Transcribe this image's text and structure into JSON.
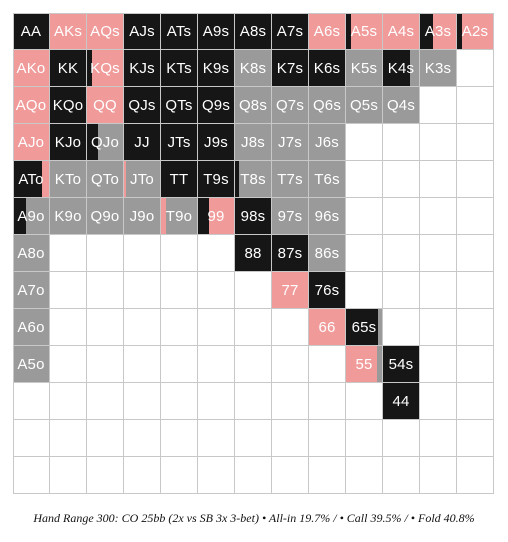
{
  "colors": {
    "allin": "#161616",
    "call": "#f09a9a",
    "fold": "#9a9a9a",
    "empty": "#ffffff",
    "label": "#ffffff"
  },
  "caption": "Hand Range 300: CO 25bb (2x vs SB 3x 3-bet) • All-in 19.7% / • Call 39.5% / • Fold 40.8%",
  "range_rows": [
    [
      {
        "hand": "AA",
        "allin": 1,
        "call": 0,
        "fold": 0
      },
      {
        "hand": "AKs",
        "allin": 0,
        "call": 1,
        "fold": 0
      },
      {
        "hand": "AQs",
        "allin": 0,
        "call": 1,
        "fold": 0
      },
      {
        "hand": "AJs",
        "allin": 1,
        "call": 0,
        "fold": 0
      },
      {
        "hand": "ATs",
        "allin": 1,
        "call": 0,
        "fold": 0
      },
      {
        "hand": "A9s",
        "allin": 1,
        "call": 0,
        "fold": 0
      },
      {
        "hand": "A8s",
        "allin": 1,
        "call": 0,
        "fold": 0
      },
      {
        "hand": "A7s",
        "allin": 1,
        "call": 0,
        "fold": 0
      },
      {
        "hand": "A6s",
        "allin": 0,
        "call": 1,
        "fold": 0
      },
      {
        "hand": "A5s",
        "allin": 0.15,
        "call": 0.85,
        "fold": 0
      },
      {
        "hand": "A4s",
        "allin": 0,
        "call": 1,
        "fold": 0
      },
      {
        "hand": "A3s",
        "allin": 0.35,
        "call": 0.65,
        "fold": 0
      },
      {
        "hand": "A2s",
        "allin": 0.15,
        "call": 0.85,
        "fold": 0
      }
    ],
    [
      {
        "hand": "AKo",
        "allin": 0,
        "call": 1,
        "fold": 0
      },
      {
        "hand": "KK",
        "allin": 1,
        "call": 0,
        "fold": 0
      },
      {
        "hand": "KQs",
        "allin": 0.15,
        "call": 0.85,
        "fold": 0
      },
      {
        "hand": "KJs",
        "allin": 1,
        "call": 0,
        "fold": 0
      },
      {
        "hand": "KTs",
        "allin": 1,
        "call": 0,
        "fold": 0
      },
      {
        "hand": "K9s",
        "allin": 1,
        "call": 0,
        "fold": 0
      },
      {
        "hand": "K8s",
        "allin": 0,
        "call": 0,
        "fold": 1
      },
      {
        "hand": "K7s",
        "allin": 1,
        "call": 0,
        "fold": 0
      },
      {
        "hand": "K6s",
        "allin": 1,
        "call": 0,
        "fold": 0
      },
      {
        "hand": "K5s",
        "allin": 0,
        "call": 0,
        "fold": 1
      },
      {
        "hand": "K4s",
        "allin": 0.75,
        "call": 0,
        "fold": 0.25
      },
      {
        "hand": "K3s",
        "allin": 0,
        "call": 0,
        "fold": 1
      },
      {
        "hand": "",
        "allin": 0,
        "call": 0,
        "fold": 0
      }
    ],
    [
      {
        "hand": "AQo",
        "allin": 0,
        "call": 1,
        "fold": 0
      },
      {
        "hand": "KQo",
        "allin": 1,
        "call": 0,
        "fold": 0
      },
      {
        "hand": "QQ",
        "allin": 0,
        "call": 1,
        "fold": 0
      },
      {
        "hand": "QJs",
        "allin": 1,
        "call": 0,
        "fold": 0
      },
      {
        "hand": "QTs",
        "allin": 1,
        "call": 0,
        "fold": 0
      },
      {
        "hand": "Q9s",
        "allin": 1,
        "call": 0,
        "fold": 0
      },
      {
        "hand": "Q8s",
        "allin": 0,
        "call": 0,
        "fold": 1
      },
      {
        "hand": "Q7s",
        "allin": 0,
        "call": 0,
        "fold": 1
      },
      {
        "hand": "Q6s",
        "allin": 0,
        "call": 0,
        "fold": 1
      },
      {
        "hand": "Q5s",
        "allin": 0,
        "call": 0,
        "fold": 1
      },
      {
        "hand": "Q4s",
        "allin": 0,
        "call": 0,
        "fold": 1
      },
      {
        "hand": "",
        "allin": 0,
        "call": 0,
        "fold": 0
      },
      {
        "hand": "",
        "allin": 0,
        "call": 0,
        "fold": 0
      }
    ],
    [
      {
        "hand": "AJo",
        "allin": 0,
        "call": 1,
        "fold": 0
      },
      {
        "hand": "KJo",
        "allin": 1,
        "call": 0,
        "fold": 0
      },
      {
        "hand": "QJo",
        "allin": 0.3,
        "call": 0,
        "fold": 0.7
      },
      {
        "hand": "JJ",
        "allin": 1,
        "call": 0,
        "fold": 0
      },
      {
        "hand": "JTs",
        "allin": 1,
        "call": 0,
        "fold": 0
      },
      {
        "hand": "J9s",
        "allin": 1,
        "call": 0,
        "fold": 0
      },
      {
        "hand": "J8s",
        "allin": 0,
        "call": 0,
        "fold": 1
      },
      {
        "hand": "J7s",
        "allin": 0,
        "call": 0,
        "fold": 1
      },
      {
        "hand": "J6s",
        "allin": 0,
        "call": 0,
        "fold": 1
      },
      {
        "hand": "",
        "allin": 0,
        "call": 0,
        "fold": 0
      },
      {
        "hand": "",
        "allin": 0,
        "call": 0,
        "fold": 0
      },
      {
        "hand": "",
        "allin": 0,
        "call": 0,
        "fold": 0
      },
      {
        "hand": "",
        "allin": 0,
        "call": 0,
        "fold": 0
      }
    ],
    [
      {
        "hand": "ATo",
        "allin": 0.8,
        "call": 0.2,
        "fold": 0
      },
      {
        "hand": "KTo",
        "allin": 0,
        "call": 0,
        "fold": 1
      },
      {
        "hand": "QTo",
        "allin": 0,
        "call": 0,
        "fold": 1
      },
      {
        "hand": "JTo",
        "allin": 0,
        "call": 0.05,
        "fold": 0.95
      },
      {
        "hand": "TT",
        "allin": 1,
        "call": 0,
        "fold": 0
      },
      {
        "hand": "T9s",
        "allin": 1,
        "call": 0,
        "fold": 0
      },
      {
        "hand": "T8s",
        "allin": 0.1,
        "call": 0,
        "fold": 0.9
      },
      {
        "hand": "T7s",
        "allin": 0,
        "call": 0,
        "fold": 1
      },
      {
        "hand": "T6s",
        "allin": 0,
        "call": 0,
        "fold": 1
      },
      {
        "hand": "",
        "allin": 0,
        "call": 0,
        "fold": 0
      },
      {
        "hand": "",
        "allin": 0,
        "call": 0,
        "fold": 0
      },
      {
        "hand": "",
        "allin": 0,
        "call": 0,
        "fold": 0
      },
      {
        "hand": "",
        "allin": 0,
        "call": 0,
        "fold": 0
      }
    ],
    [
      {
        "hand": "A9o",
        "allin": 0.35,
        "call": 0,
        "fold": 0.65
      },
      {
        "hand": "K9o",
        "allin": 0,
        "call": 0,
        "fold": 1
      },
      {
        "hand": "Q9o",
        "allin": 0,
        "call": 0,
        "fold": 1
      },
      {
        "hand": "J9o",
        "allin": 0,
        "call": 0,
        "fold": 1
      },
      {
        "hand": "T9o",
        "allin": 0,
        "call": 0.15,
        "fold": 0.85
      },
      {
        "hand": "99",
        "allin": 0.3,
        "call": 0.7,
        "fold": 0
      },
      {
        "hand": "98s",
        "allin": 1,
        "call": 0,
        "fold": 0
      },
      {
        "hand": "97s",
        "allin": 0,
        "call": 0,
        "fold": 1
      },
      {
        "hand": "96s",
        "allin": 0,
        "call": 0,
        "fold": 1
      },
      {
        "hand": "",
        "allin": 0,
        "call": 0,
        "fold": 0
      },
      {
        "hand": "",
        "allin": 0,
        "call": 0,
        "fold": 0
      },
      {
        "hand": "",
        "allin": 0,
        "call": 0,
        "fold": 0
      },
      {
        "hand": "",
        "allin": 0,
        "call": 0,
        "fold": 0
      }
    ],
    [
      {
        "hand": "A8o",
        "allin": 0,
        "call": 0,
        "fold": 1
      },
      {
        "hand": "",
        "allin": 0,
        "call": 0,
        "fold": 0
      },
      {
        "hand": "",
        "allin": 0,
        "call": 0,
        "fold": 0
      },
      {
        "hand": "",
        "allin": 0,
        "call": 0,
        "fold": 0
      },
      {
        "hand": "",
        "allin": 0,
        "call": 0,
        "fold": 0
      },
      {
        "hand": "",
        "allin": 0,
        "call": 0,
        "fold": 0
      },
      {
        "hand": "88",
        "allin": 1,
        "call": 0,
        "fold": 0
      },
      {
        "hand": "87s",
        "allin": 1,
        "call": 0,
        "fold": 0
      },
      {
        "hand": "86s",
        "allin": 0,
        "call": 0,
        "fold": 1
      },
      {
        "hand": "",
        "allin": 0,
        "call": 0,
        "fold": 0
      },
      {
        "hand": "",
        "allin": 0,
        "call": 0,
        "fold": 0
      },
      {
        "hand": "",
        "allin": 0,
        "call": 0,
        "fold": 0
      },
      {
        "hand": "",
        "allin": 0,
        "call": 0,
        "fold": 0
      }
    ],
    [
      {
        "hand": "A7o",
        "allin": 0,
        "call": 0,
        "fold": 1
      },
      {
        "hand": "",
        "allin": 0,
        "call": 0,
        "fold": 0
      },
      {
        "hand": "",
        "allin": 0,
        "call": 0,
        "fold": 0
      },
      {
        "hand": "",
        "allin": 0,
        "call": 0,
        "fold": 0
      },
      {
        "hand": "",
        "allin": 0,
        "call": 0,
        "fold": 0
      },
      {
        "hand": "",
        "allin": 0,
        "call": 0,
        "fold": 0
      },
      {
        "hand": "",
        "allin": 0,
        "call": 0,
        "fold": 0
      },
      {
        "hand": "77",
        "allin": 0,
        "call": 1,
        "fold": 0
      },
      {
        "hand": "76s",
        "allin": 1,
        "call": 0,
        "fold": 0
      },
      {
        "hand": "",
        "allin": 0,
        "call": 0,
        "fold": 0
      },
      {
        "hand": "",
        "allin": 0,
        "call": 0,
        "fold": 0
      },
      {
        "hand": "",
        "allin": 0,
        "call": 0,
        "fold": 0
      },
      {
        "hand": "",
        "allin": 0,
        "call": 0,
        "fold": 0
      }
    ],
    [
      {
        "hand": "A6o",
        "allin": 0,
        "call": 0,
        "fold": 1
      },
      {
        "hand": "",
        "allin": 0,
        "call": 0,
        "fold": 0
      },
      {
        "hand": "",
        "allin": 0,
        "call": 0,
        "fold": 0
      },
      {
        "hand": "",
        "allin": 0,
        "call": 0,
        "fold": 0
      },
      {
        "hand": "",
        "allin": 0,
        "call": 0,
        "fold": 0
      },
      {
        "hand": "",
        "allin": 0,
        "call": 0,
        "fold": 0
      },
      {
        "hand": "",
        "allin": 0,
        "call": 0,
        "fold": 0
      },
      {
        "hand": "",
        "allin": 0,
        "call": 0,
        "fold": 0
      },
      {
        "hand": "66",
        "allin": 0,
        "call": 1,
        "fold": 0
      },
      {
        "hand": "65s",
        "allin": 0.9,
        "call": 0,
        "fold": 0.1
      },
      {
        "hand": "",
        "allin": 0,
        "call": 0,
        "fold": 0
      },
      {
        "hand": "",
        "allin": 0,
        "call": 0,
        "fold": 0
      },
      {
        "hand": "",
        "allin": 0,
        "call": 0,
        "fold": 0
      }
    ],
    [
      {
        "hand": "A5o",
        "allin": 0,
        "call": 0,
        "fold": 1
      },
      {
        "hand": "",
        "allin": 0,
        "call": 0,
        "fold": 0
      },
      {
        "hand": "",
        "allin": 0,
        "call": 0,
        "fold": 0
      },
      {
        "hand": "",
        "allin": 0,
        "call": 0,
        "fold": 0
      },
      {
        "hand": "",
        "allin": 0,
        "call": 0,
        "fold": 0
      },
      {
        "hand": "",
        "allin": 0,
        "call": 0,
        "fold": 0
      },
      {
        "hand": "",
        "allin": 0,
        "call": 0,
        "fold": 0
      },
      {
        "hand": "",
        "allin": 0,
        "call": 0,
        "fold": 0
      },
      {
        "hand": "",
        "allin": 0,
        "call": 0,
        "fold": 0
      },
      {
        "hand": "55",
        "allin": 0,
        "call": 0.85,
        "fold": 0.15
      },
      {
        "hand": "54s",
        "allin": 1,
        "call": 0,
        "fold": 0
      },
      {
        "hand": "",
        "allin": 0,
        "call": 0,
        "fold": 0
      },
      {
        "hand": "",
        "allin": 0,
        "call": 0,
        "fold": 0
      }
    ],
    [
      {
        "hand": "",
        "allin": 0,
        "call": 0,
        "fold": 0
      },
      {
        "hand": "",
        "allin": 0,
        "call": 0,
        "fold": 0
      },
      {
        "hand": "",
        "allin": 0,
        "call": 0,
        "fold": 0
      },
      {
        "hand": "",
        "allin": 0,
        "call": 0,
        "fold": 0
      },
      {
        "hand": "",
        "allin": 0,
        "call": 0,
        "fold": 0
      },
      {
        "hand": "",
        "allin": 0,
        "call": 0,
        "fold": 0
      },
      {
        "hand": "",
        "allin": 0,
        "call": 0,
        "fold": 0
      },
      {
        "hand": "",
        "allin": 0,
        "call": 0,
        "fold": 0
      },
      {
        "hand": "",
        "allin": 0,
        "call": 0,
        "fold": 0
      },
      {
        "hand": "",
        "allin": 0,
        "call": 0,
        "fold": 0
      },
      {
        "hand": "44",
        "allin": 1,
        "call": 0,
        "fold": 0
      },
      {
        "hand": "",
        "allin": 0,
        "call": 0,
        "fold": 0
      },
      {
        "hand": "",
        "allin": 0,
        "call": 0,
        "fold": 0
      }
    ],
    [
      {
        "hand": "",
        "allin": 0,
        "call": 0,
        "fold": 0
      },
      {
        "hand": "",
        "allin": 0,
        "call": 0,
        "fold": 0
      },
      {
        "hand": "",
        "allin": 0,
        "call": 0,
        "fold": 0
      },
      {
        "hand": "",
        "allin": 0,
        "call": 0,
        "fold": 0
      },
      {
        "hand": "",
        "allin": 0,
        "call": 0,
        "fold": 0
      },
      {
        "hand": "",
        "allin": 0,
        "call": 0,
        "fold": 0
      },
      {
        "hand": "",
        "allin": 0,
        "call": 0,
        "fold": 0
      },
      {
        "hand": "",
        "allin": 0,
        "call": 0,
        "fold": 0
      },
      {
        "hand": "",
        "allin": 0,
        "call": 0,
        "fold": 0
      },
      {
        "hand": "",
        "allin": 0,
        "call": 0,
        "fold": 0
      },
      {
        "hand": "",
        "allin": 0,
        "call": 0,
        "fold": 0
      },
      {
        "hand": "",
        "allin": 0,
        "call": 0,
        "fold": 0
      },
      {
        "hand": "",
        "allin": 0,
        "call": 0,
        "fold": 0
      }
    ],
    [
      {
        "hand": "",
        "allin": 0,
        "call": 0,
        "fold": 0
      },
      {
        "hand": "",
        "allin": 0,
        "call": 0,
        "fold": 0
      },
      {
        "hand": "",
        "allin": 0,
        "call": 0,
        "fold": 0
      },
      {
        "hand": "",
        "allin": 0,
        "call": 0,
        "fold": 0
      },
      {
        "hand": "",
        "allin": 0,
        "call": 0,
        "fold": 0
      },
      {
        "hand": "",
        "allin": 0,
        "call": 0,
        "fold": 0
      },
      {
        "hand": "",
        "allin": 0,
        "call": 0,
        "fold": 0
      },
      {
        "hand": "",
        "allin": 0,
        "call": 0,
        "fold": 0
      },
      {
        "hand": "",
        "allin": 0,
        "call": 0,
        "fold": 0
      },
      {
        "hand": "",
        "allin": 0,
        "call": 0,
        "fold": 0
      },
      {
        "hand": "",
        "allin": 0,
        "call": 0,
        "fold": 0
      },
      {
        "hand": "",
        "allin": 0,
        "call": 0,
        "fold": 0
      },
      {
        "hand": "",
        "allin": 0,
        "call": 0,
        "fold": 0
      }
    ]
  ]
}
